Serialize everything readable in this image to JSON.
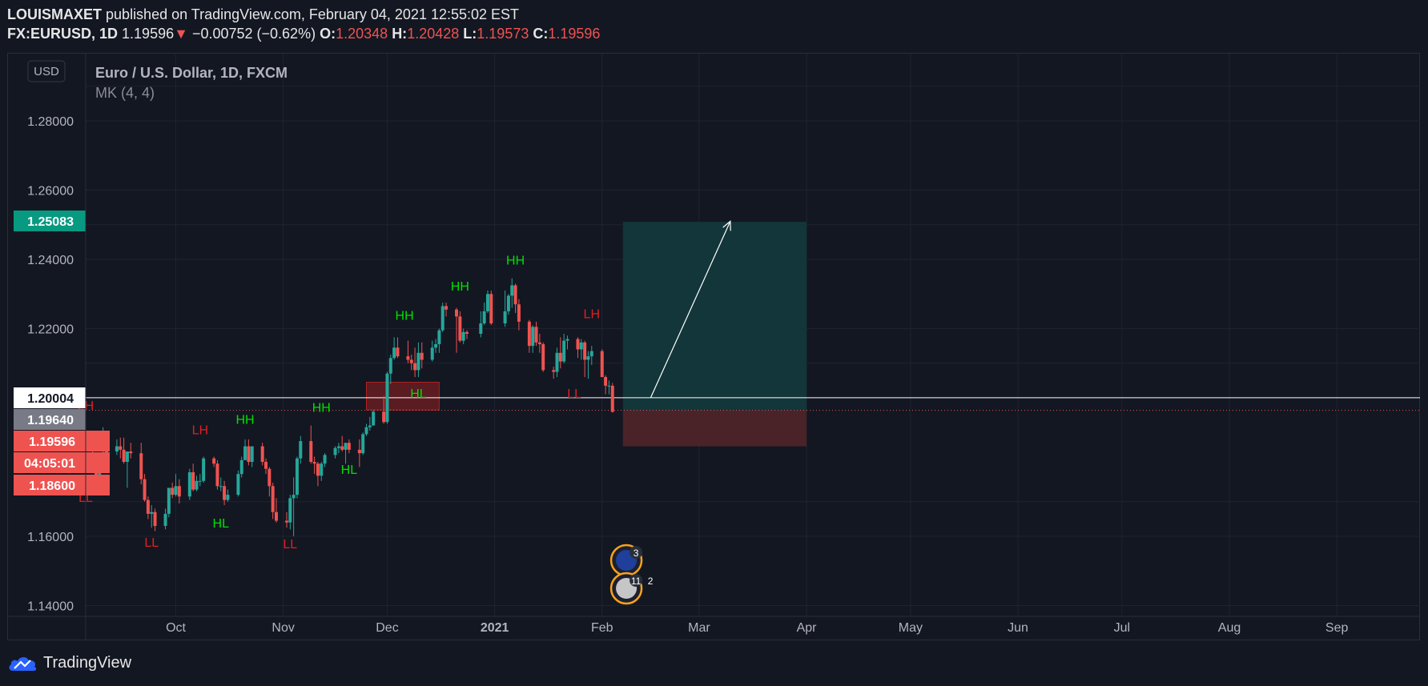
{
  "header": {
    "author": "LOUISMAXET",
    "published_text": "published on TradingView.com, February 04, 2021 12:55:02 EST",
    "symbol": "FX:EURUSD, 1D",
    "last": "1.19596",
    "change_arrow": "▼",
    "change": "−0.00752 (−0.62%)",
    "o_label": "O:",
    "o_value": "1.20348",
    "h_label": "H:",
    "h_value": "1.20428",
    "l_label": "L:",
    "l_value": "1.19573",
    "c_label": "C:",
    "c_value": "1.19596"
  },
  "legend": {
    "currency_button": "USD",
    "series_title": "Euro / U.S. Dollar, 1D, FXCM",
    "indicator": "MK (4, 4)"
  },
  "footer": {
    "brand": "TradingView"
  },
  "colors": {
    "background": "#131722",
    "up": "#26a69a",
    "down": "#ef5350",
    "target_zone": "#12363a",
    "stop_zone": "#4a2328",
    "hh_label": "#00e000",
    "ll_label": "#e02020"
  },
  "chart_data": {
    "type": "candlestick",
    "title": "Euro / U.S. Dollar, 1D, FXCM",
    "y_axis": {
      "ylim": [
        1.14,
        1.29
      ],
      "ticks": [
        "1.28000",
        "1.26000",
        "1.24000",
        "1.22000",
        "1.20000",
        "1.16000",
        "1.14000"
      ],
      "tick_values": [
        1.28,
        1.26,
        1.24,
        1.22,
        1.2,
        1.16,
        1.14
      ],
      "price_tags": [
        {
          "label": "1.25083",
          "value": 1.25083,
          "color": "#089981",
          "text_color": "#ffffff"
        },
        {
          "label": "1.20004",
          "value": 1.20004,
          "color": "#ffffff",
          "text_color": "#131722"
        },
        {
          "label": "1.19640",
          "value": 1.1964,
          "color": "#787b86",
          "text_color": "#ffffff"
        },
        {
          "label": "1.19596",
          "value": 1.19596,
          "color": "#ef5350",
          "text_color": "#ffffff"
        },
        {
          "label": "04:05:01",
          "value": 1.19,
          "color": "#ef5350",
          "text_color": "#ffffff"
        },
        {
          "label": "1.18600",
          "value": 1.186,
          "color": "#ef5350",
          "text_color": "#ffffff"
        }
      ]
    },
    "x_axis": {
      "labels": [
        "Oct",
        "Nov",
        "Dec",
        "2021",
        "Feb",
        "Mar",
        "Apr",
        "May",
        "Jun",
        "Jul",
        "Aug",
        "Sep"
      ],
      "label_dates": [
        "2020-10-01",
        "2020-11-01",
        "2020-12-01",
        "2021-01-01",
        "2021-02-01",
        "2021-03-01",
        "2021-04-01",
        "2021-05-01",
        "2021-06-01",
        "2021-07-01",
        "2021-08-01",
        "2021-09-01"
      ],
      "range": [
        "2020-09-05",
        "2021-09-25"
      ]
    },
    "series": [
      {
        "name": "EURUSD",
        "candles": [
          [
            "2020-09-07",
            1.1835,
            1.1855,
            1.1805,
            1.1815
          ],
          [
            "2020-09-08",
            1.1815,
            1.183,
            1.1765,
            1.1775
          ],
          [
            "2020-09-09",
            1.1775,
            1.183,
            1.177,
            1.18
          ],
          [
            "2020-09-10",
            1.18,
            1.1915,
            1.179,
            1.1815
          ],
          [
            "2020-09-11",
            1.1815,
            1.186,
            1.1815,
            1.1845
          ],
          [
            "2020-09-14",
            1.1845,
            1.188,
            1.1835,
            1.186
          ],
          [
            "2020-09-15",
            1.186,
            1.1885,
            1.1825,
            1.185
          ],
          [
            "2020-09-16",
            1.185,
            1.1885,
            1.181,
            1.1815
          ],
          [
            "2020-09-17",
            1.1815,
            1.1845,
            1.174,
            1.1845
          ],
          [
            "2020-09-18",
            1.1845,
            1.187,
            1.1825,
            1.184
          ],
          [
            "2020-09-21",
            1.184,
            1.187,
            1.175,
            1.1765
          ],
          [
            "2020-09-22",
            1.1765,
            1.178,
            1.17,
            1.1705
          ],
          [
            "2020-09-23",
            1.1705,
            1.1715,
            1.165,
            1.1665
          ],
          [
            "2020-09-24",
            1.1665,
            1.169,
            1.1625,
            1.167
          ],
          [
            "2020-09-25",
            1.167,
            1.168,
            1.1615,
            1.163
          ],
          [
            "2020-09-28",
            1.163,
            1.168,
            1.162,
            1.1665
          ],
          [
            "2020-09-29",
            1.1665,
            1.174,
            1.1655,
            1.174
          ],
          [
            "2020-09-30",
            1.174,
            1.1755,
            1.171,
            1.172
          ],
          [
            "2020-10-01",
            1.172,
            1.178,
            1.1715,
            1.1745
          ],
          [
            "2020-10-02",
            1.1745,
            1.1765,
            1.1695,
            1.1715
          ],
          [
            "2020-10-05",
            1.1715,
            1.1795,
            1.1705,
            1.1785
          ],
          [
            "2020-10-06",
            1.1785,
            1.181,
            1.173,
            1.1735
          ],
          [
            "2020-10-07",
            1.1735,
            1.1775,
            1.173,
            1.176
          ],
          [
            "2020-10-08",
            1.176,
            1.178,
            1.1745,
            1.176
          ],
          [
            "2020-10-09",
            1.176,
            1.183,
            1.1755,
            1.1825
          ],
          [
            "2020-10-12",
            1.1825,
            1.183,
            1.18,
            1.181
          ],
          [
            "2020-10-13",
            1.181,
            1.182,
            1.1735,
            1.1745
          ],
          [
            "2020-10-14",
            1.1745,
            1.177,
            1.173,
            1.1745
          ],
          [
            "2020-10-15",
            1.1745,
            1.176,
            1.169,
            1.1705
          ],
          [
            "2020-10-16",
            1.1705,
            1.1735,
            1.17,
            1.172
          ],
          [
            "2020-10-19",
            1.172,
            1.179,
            1.1715,
            1.178
          ],
          [
            "2020-10-20",
            1.178,
            1.183,
            1.177,
            1.182
          ],
          [
            "2020-10-21",
            1.182,
            1.188,
            1.182,
            1.186
          ],
          [
            "2020-10-22",
            1.186,
            1.188,
            1.1805,
            1.1815
          ],
          [
            "2020-10-23",
            1.1815,
            1.186,
            1.18,
            1.186
          ],
          [
            "2020-10-26",
            1.186,
            1.187,
            1.1805,
            1.1815
          ],
          [
            "2020-10-27",
            1.1815,
            1.1825,
            1.178,
            1.1795
          ],
          [
            "2020-10-28",
            1.1795,
            1.18,
            1.1715,
            1.1745
          ],
          [
            "2020-10-29",
            1.1745,
            1.1755,
            1.165,
            1.167
          ],
          [
            "2020-10-30",
            1.167,
            1.171,
            1.164,
            1.1645
          ],
          [
            "2020-11-02",
            1.1645,
            1.167,
            1.1625,
            1.164
          ],
          [
            "2020-11-03",
            1.164,
            1.172,
            1.162,
            1.171
          ],
          [
            "2020-11-04",
            1.171,
            1.177,
            1.16,
            1.172
          ],
          [
            "2020-11-05",
            1.172,
            1.183,
            1.171,
            1.1825
          ],
          [
            "2020-11-06",
            1.1825,
            1.189,
            1.181,
            1.1875
          ],
          [
            "2020-11-09",
            1.1875,
            1.192,
            1.181,
            1.1815
          ],
          [
            "2020-11-10",
            1.1815,
            1.183,
            1.178,
            1.181
          ],
          [
            "2020-11-11",
            1.181,
            1.1815,
            1.1745,
            1.1775
          ],
          [
            "2020-11-12",
            1.1775,
            1.1815,
            1.176,
            1.181
          ],
          [
            "2020-11-13",
            1.181,
            1.184,
            1.18,
            1.1835
          ],
          [
            "2020-11-16",
            1.1835,
            1.186,
            1.1825,
            1.1855
          ],
          [
            "2020-11-17",
            1.1855,
            1.187,
            1.184,
            1.186
          ],
          [
            "2020-11-18",
            1.186,
            1.189,
            1.1845,
            1.185
          ],
          [
            "2020-11-19",
            1.185,
            1.187,
            1.181,
            1.187
          ],
          [
            "2020-11-20",
            1.187,
            1.188,
            1.184,
            1.185
          ],
          [
            "2020-11-23",
            1.185,
            1.188,
            1.18,
            1.184
          ],
          [
            "2020-11-24",
            1.184,
            1.19,
            1.1835,
            1.1895
          ],
          [
            "2020-11-25",
            1.1895,
            1.1925,
            1.189,
            1.1915
          ],
          [
            "2020-11-26",
            1.1915,
            1.1945,
            1.1905,
            1.192
          ],
          [
            "2020-11-27",
            1.192,
            1.1965,
            1.192,
            1.196
          ],
          [
            "2020-11-30",
            1.196,
            1.2005,
            1.1925,
            1.193
          ],
          [
            "2020-12-01",
            1.193,
            1.2075,
            1.1925,
            1.207
          ],
          [
            "2020-12-02",
            1.207,
            1.2125,
            1.204,
            1.2115
          ],
          [
            "2020-12-03",
            1.2115,
            1.2175,
            1.211,
            1.2145
          ],
          [
            "2020-12-04",
            1.2145,
            1.2175,
            1.2115,
            1.212
          ],
          [
            "2020-12-07",
            1.212,
            1.2165,
            1.21,
            1.211
          ],
          [
            "2020-12-08",
            1.211,
            1.2125,
            1.208,
            1.21
          ],
          [
            "2020-12-09",
            1.21,
            1.2145,
            1.206,
            1.208
          ],
          [
            "2020-12-10",
            1.208,
            1.216,
            1.206,
            1.213
          ],
          [
            "2020-12-11",
            1.213,
            1.216,
            1.2085,
            1.211
          ],
          [
            "2020-12-14",
            1.211,
            1.2165,
            1.2105,
            1.2145
          ],
          [
            "2020-12-15",
            1.2145,
            1.217,
            1.213,
            1.2155
          ],
          [
            "2020-12-16",
            1.2155,
            1.22,
            1.213,
            1.2195
          ],
          [
            "2020-12-17",
            1.2195,
            1.2275,
            1.219,
            1.2265
          ],
          [
            "2020-12-18",
            1.2265,
            1.2275,
            1.2235,
            1.2255
          ],
          [
            "2020-12-21",
            1.2255,
            1.226,
            1.213,
            1.2235
          ],
          [
            "2020-12-22",
            1.2235,
            1.225,
            1.216,
            1.2165
          ],
          [
            "2020-12-23",
            1.2165,
            1.22,
            1.2155,
            1.219
          ],
          [
            "2020-12-24",
            1.219,
            1.2195,
            1.217,
            1.2185
          ],
          [
            "2020-12-28",
            1.2185,
            1.225,
            1.2175,
            1.2215
          ],
          [
            "2020-12-29",
            1.2215,
            1.2275,
            1.221,
            1.225
          ],
          [
            "2020-12-30",
            1.225,
            1.231,
            1.2245,
            1.23
          ],
          [
            "2020-12-31",
            1.23,
            1.231,
            1.221,
            1.2215
          ],
          [
            "2021-01-04",
            1.2215,
            1.231,
            1.2205,
            1.225
          ],
          [
            "2021-01-05",
            1.225,
            1.23,
            1.224,
            1.2295
          ],
          [
            "2021-01-06",
            1.2295,
            1.2345,
            1.226,
            1.2325
          ],
          [
            "2021-01-07",
            1.2325,
            1.233,
            1.2245,
            1.227
          ],
          [
            "2021-01-08",
            1.227,
            1.2285,
            1.2195,
            1.222
          ],
          [
            "2021-01-11",
            1.222,
            1.2225,
            1.213,
            1.215
          ],
          [
            "2021-01-12",
            1.215,
            1.221,
            1.213,
            1.2205
          ],
          [
            "2021-01-13",
            1.2205,
            1.222,
            1.215,
            1.216
          ],
          [
            "2021-01-14",
            1.216,
            1.2185,
            1.213,
            1.2155
          ],
          [
            "2021-01-15",
            1.2155,
            1.216,
            1.2075,
            1.208
          ],
          [
            "2021-01-18",
            1.208,
            1.209,
            1.2055,
            1.2075
          ],
          [
            "2021-01-19",
            1.2075,
            1.2145,
            1.206,
            1.213
          ],
          [
            "2021-01-20",
            1.213,
            1.2175,
            1.2085,
            1.2105
          ],
          [
            "2021-01-21",
            1.2105,
            1.2185,
            1.21,
            1.2165
          ],
          [
            "2021-01-22",
            1.2165,
            1.218,
            1.214,
            1.217
          ],
          [
            "2021-01-25",
            1.217,
            1.2175,
            1.2115,
            1.214
          ],
          [
            "2021-01-26",
            1.214,
            1.217,
            1.211,
            1.216
          ],
          [
            "2021-01-27",
            1.216,
            1.2165,
            1.206,
            1.211
          ],
          [
            "2021-01-28",
            1.211,
            1.2135,
            1.2055,
            1.212
          ],
          [
            "2021-01-29",
            1.212,
            1.215,
            1.2095,
            1.2135
          ],
          [
            "2021-02-01",
            1.2135,
            1.214,
            1.206,
            1.206
          ],
          [
            "2021-02-02",
            1.206,
            1.2065,
            1.201,
            1.2035
          ],
          [
            "2021-02-03",
            1.2035,
            1.205,
            1.201,
            1.2035
          ],
          [
            "2021-02-04",
            1.20348,
            1.20428,
            1.19573,
            1.19596
          ]
        ]
      }
    ],
    "annotations": [
      {
        "text": "LH",
        "date": "2020-09-05",
        "price": 1.1965,
        "color": "red"
      },
      {
        "text": "LL",
        "date": "2020-09-05",
        "price": 1.17,
        "color": "red"
      },
      {
        "text": "LL",
        "date": "2020-09-24",
        "price": 1.157,
        "color": "red"
      },
      {
        "text": "LH",
        "date": "2020-10-08",
        "price": 1.1895,
        "color": "red"
      },
      {
        "text": "HL",
        "date": "2020-10-14",
        "price": 1.1625,
        "color": "green"
      },
      {
        "text": "HH",
        "date": "2020-10-21",
        "price": 1.1925,
        "color": "green"
      },
      {
        "text": "LL",
        "date": "2020-11-03",
        "price": 1.1565,
        "color": "red"
      },
      {
        "text": "HH",
        "date": "2020-11-12",
        "price": 1.196,
        "color": "green"
      },
      {
        "text": "HL",
        "date": "2020-11-20",
        "price": 1.178,
        "color": "green"
      },
      {
        "text": "HH",
        "date": "2020-12-06",
        "price": 1.2225,
        "color": "green"
      },
      {
        "text": "HL",
        "date": "2020-12-10",
        "price": 1.2,
        "color": "green"
      },
      {
        "text": "HH",
        "date": "2020-12-22",
        "price": 1.231,
        "color": "green"
      },
      {
        "text": "HH",
        "date": "2021-01-07",
        "price": 1.2385,
        "color": "green"
      },
      {
        "text": "LL",
        "date": "2021-01-24",
        "price": 1.2,
        "color": "red"
      },
      {
        "text": "LH",
        "date": "2021-01-29",
        "price": 1.223,
        "color": "red"
      }
    ],
    "drawings": {
      "supply_box": {
        "date_from": "2020-11-25",
        "date_to": "2020-12-16",
        "price_top": 1.2045,
        "price_bottom": 1.1965
      },
      "long_position": {
        "date_from": "2021-02-07",
        "date_to": "2021-04-01",
        "entry": 1.1964,
        "target": 1.25083,
        "stop": 1.186
      },
      "horizontal_line": 1.20004,
      "dotted_line": 1.1964,
      "arrow": {
        "from_date": "2021-02-15",
        "from_price": 1.2,
        "to_date": "2021-03-10",
        "to_price": 1.251
      }
    },
    "event_badges": [
      {
        "flag": "EU",
        "count": "3"
      },
      {
        "flag": "US",
        "count": "11",
        "extra": "2"
      }
    ],
    "grid": true
  }
}
